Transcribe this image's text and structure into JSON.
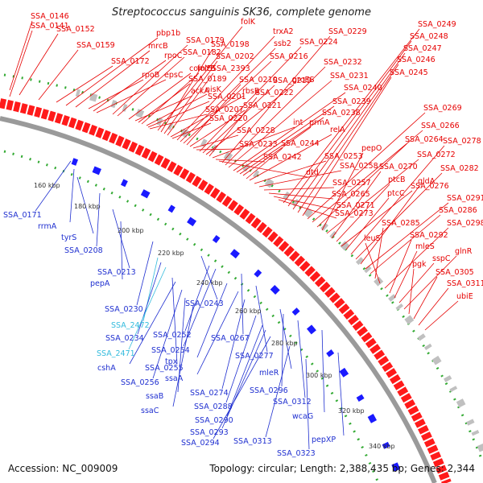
{
  "title": "Streptococcus sanguinis SK36, complete genome",
  "accession_text": "Accession: NC_009009",
  "summary_text": "Topology: circular; Length: 2,388,435 bp; Genes: 2,344",
  "colors": {
    "forward_label": "#e60000",
    "reverse_label": "#1f2fd0",
    "rna_label": "#33bbdd",
    "forward_cds": "#ff1a1a",
    "reverse_cds": "#1a1aff",
    "gc_skew": "#33aa33",
    "backbone": "#9a9a9a"
  },
  "ticks": [
    "160 kbp",
    "180 kbp",
    "200 kbp",
    "220 kbp",
    "240 kbp",
    "260 kbp",
    "280 kbp",
    "300 kbp",
    "320 kbp",
    "340 kbp"
  ],
  "forward_labels": [
    "SSA_0146",
    "SSA_0141",
    "SSA_0152",
    "SSA_0159",
    "SSA_0172",
    "pbp1b",
    "mrcB",
    "rpoB",
    "rpoC",
    "epsC",
    "SSA_0179",
    "SSA_0182",
    "comYB",
    "ackA",
    "SSA_0189",
    "folE",
    "nisK",
    "SSA_0201",
    "SSA_0207",
    "folK",
    "SSA_0198",
    "SSA_0202",
    "SSA_2393",
    "rbsB",
    "SSA_0220",
    "trxA2",
    "ssb2",
    "SSA_0216",
    "SSA_0210",
    "SSA_0221",
    "SSA_0228",
    "SSA_0233",
    "SSA_0224",
    "SSA_0219",
    "groES",
    "SSA_0222",
    "int",
    "SSA_0242",
    "dtd",
    "SSA_0229",
    "SSA_0232",
    "SSA_0231",
    "SSA_0240",
    "SSA_0239",
    "SSA_0238",
    "prmA",
    "SSA_0244",
    "relA",
    "SSA_0253",
    "SSA_0258",
    "SSA_0257",
    "SSA_0265",
    "SSA_0271",
    "SSA_0273",
    "SSA_0249",
    "SSA_0248",
    "SSA_0247",
    "SSA_0246",
    "SSA_0245",
    "SSA_0269",
    "SSA_0266",
    "SSA_0264",
    "pepO",
    "SSA_0272",
    "SSA_0270",
    "ptcB",
    "SSA_0276",
    "ptcC",
    "SSA_0278",
    "SSA_0282",
    "gldA",
    "SSA_0291",
    "SSA_0286",
    "SSA_0285",
    "leuS",
    "SSA_0298",
    "SSA_0292",
    "mleS",
    "sspC",
    "glnR",
    "pgk",
    "SSA_0305",
    "SSA_0311",
    "ubiE"
  ],
  "reverse_labels": [
    "SSA_0171",
    "rrmA",
    "tyrS",
    "SSA_0208",
    "SSA_0213",
    "pepA",
    "SSA_0230",
    "SSA_0243",
    "SSA_2472",
    "SSA_0234",
    "SSA_0252",
    "SSA_2471",
    "SSA_0254",
    "SSA_0267",
    "SSA_0255",
    "cshA",
    "tpx",
    "SSA_0277",
    "SSA_0256",
    "ssaA",
    "ssaB",
    "SSA_0274",
    "ssaC",
    "mleR",
    "SSA_0296",
    "SSA_0288",
    "SSA_0312",
    "wcaG",
    "SSA_0290",
    "SSA_0293",
    "SSA_0294",
    "SSA_0313",
    "pepXP",
    "SSA_0323"
  ]
}
